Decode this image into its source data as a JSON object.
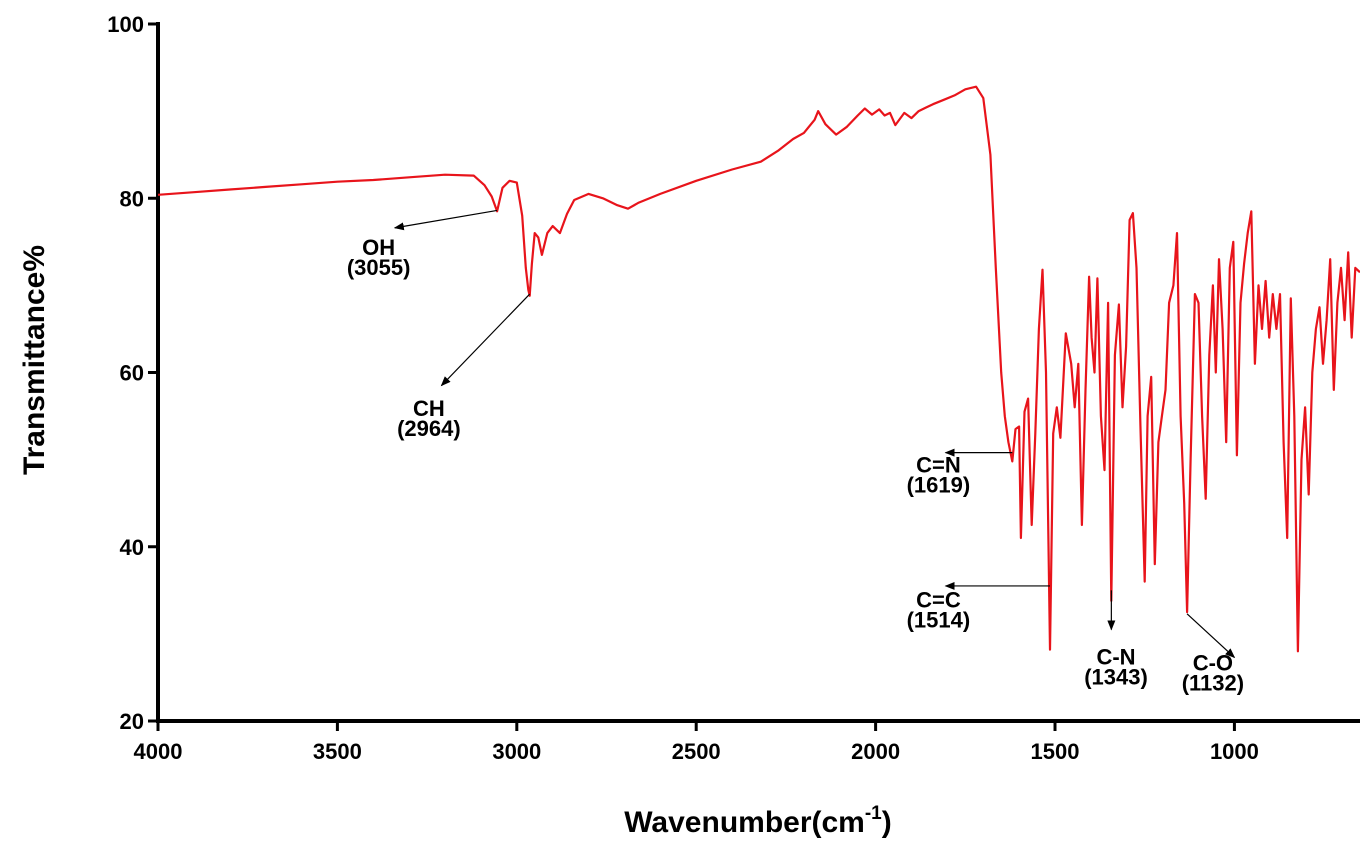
{
  "chart_data": {
    "type": "line",
    "title": "",
    "xlabel": "Wavenumber(cm",
    "xlabel_superscript": "-1",
    "xlabel_close": ")",
    "ylabel": "Transmittance%",
    "xlim": [
      4000,
      650
    ],
    "ylim": [
      20,
      100
    ],
    "x_reversed": true,
    "grid": false,
    "x_ticks": [
      4000,
      3500,
      3000,
      2500,
      2000,
      1500,
      1000
    ],
    "x_tick_labels": [
      "4000",
      "3500",
      "3000",
      "2500",
      "2000",
      "1500",
      "1000"
    ],
    "y_ticks": [
      20,
      40,
      60,
      80,
      100
    ],
    "y_tick_labels": [
      "20",
      "40",
      "60",
      "80",
      "100"
    ],
    "series": [
      {
        "color": "#e8141b",
        "x": [
          4000,
          3900,
          3800,
          3700,
          3600,
          3500,
          3400,
          3300,
          3200,
          3120,
          3090,
          3070,
          3055,
          3040,
          3020,
          3000,
          2985,
          2975,
          2968,
          2964,
          2958,
          2950,
          2940,
          2930,
          2915,
          2900,
          2880,
          2860,
          2840,
          2800,
          2760,
          2720,
          2690,
          2660,
          2600,
          2500,
          2400,
          2320,
          2270,
          2230,
          2200,
          2170,
          2160,
          2140,
          2110,
          2080,
          2050,
          2030,
          2010,
          1990,
          1975,
          1960,
          1945,
          1920,
          1900,
          1880,
          1860,
          1840,
          1810,
          1780,
          1750,
          1720,
          1700,
          1680,
          1665,
          1650,
          1640,
          1630,
          1619,
          1610,
          1600,
          1595,
          1585,
          1575,
          1565,
          1555,
          1545,
          1535,
          1525,
          1514,
          1505,
          1495,
          1485,
          1470,
          1455,
          1445,
          1435,
          1425,
          1415,
          1405,
          1398,
          1390,
          1382,
          1372,
          1362,
          1352,
          1343,
          1333,
          1322,
          1312,
          1302,
          1292,
          1283,
          1273,
          1262,
          1250,
          1242,
          1232,
          1222,
          1212,
          1202,
          1192,
          1182,
          1170,
          1160,
          1150,
          1140,
          1132,
          1122,
          1110,
          1100,
          1090,
          1080,
          1070,
          1060,
          1052,
          1043,
          1033,
          1023,
          1013,
          1003,
          993,
          983,
          973,
          963,
          953,
          943,
          933,
          923,
          913,
          903,
          893,
          883,
          873,
          863,
          853,
          843,
          833,
          823,
          813,
          803,
          793,
          783,
          773,
          763,
          753,
          743,
          733,
          723,
          713,
          703,
          693,
          683,
          673,
          663,
          650
        ],
        "y": [
          80.4,
          80.7,
          81.0,
          81.3,
          81.6,
          81.9,
          82.1,
          82.4,
          82.7,
          82.6,
          81.5,
          80.2,
          78.5,
          81.2,
          82.0,
          81.8,
          78.0,
          72.0,
          69.5,
          68.8,
          72.5,
          76.0,
          75.5,
          73.5,
          76.0,
          76.8,
          76.0,
          78.2,
          79.8,
          80.5,
          80.0,
          79.2,
          78.8,
          79.5,
          80.5,
          82.0,
          83.3,
          84.2,
          85.5,
          86.8,
          87.5,
          89.0,
          90.0,
          88.5,
          87.3,
          88.2,
          89.5,
          90.3,
          89.6,
          90.2,
          89.5,
          89.8,
          88.4,
          89.8,
          89.2,
          90.0,
          90.4,
          90.8,
          91.3,
          91.8,
          92.5,
          92.8,
          91.5,
          85.0,
          72.0,
          60.0,
          55.0,
          52.0,
          49.8,
          53.5,
          53.8,
          41.0,
          55.5,
          57.0,
          42.5,
          53.0,
          65.0,
          71.8,
          60.0,
          28.2,
          53.0,
          56.0,
          52.5,
          64.5,
          61.0,
          56.0,
          61.0,
          42.5,
          58.0,
          71.0,
          64.0,
          60.0,
          70.8,
          55.0,
          48.8,
          68.0,
          33.8,
          62.0,
          67.8,
          56.0,
          63.0,
          77.5,
          78.3,
          72.0,
          54.0,
          36.0,
          55.0,
          59.5,
          38.0,
          52.0,
          55.0,
          58.0,
          68.0,
          70.0,
          76.0,
          55.0,
          45.0,
          32.5,
          50.0,
          69.0,
          68.0,
          55.0,
          45.5,
          62.0,
          70.0,
          60.0,
          73.0,
          65.0,
          52.0,
          72.0,
          75.0,
          50.5,
          68.0,
          72.5,
          76.0,
          78.5,
          61.0,
          70.0,
          65.0,
          70.5,
          64.0,
          69.0,
          65.0,
          69.0,
          52.0,
          41.0,
          68.5,
          55.0,
          28.0,
          50.0,
          56.0,
          46.0,
          60.0,
          65.0,
          67.5,
          61.0,
          66.0,
          73.0,
          58.0,
          68.0,
          72.0,
          66.0,
          73.8,
          64.0,
          72.0,
          71.5
        ]
      }
    ],
    "annotations": [
      {
        "label": "OH",
        "sub": "(3055)",
        "peak_x": 3055,
        "peak_y": 78.6,
        "tx": 3340,
        "ty": 76.6,
        "lx": 3385,
        "ly": 73.5
      },
      {
        "label": "CH",
        "sub": "(2964)",
        "peak_x": 2964,
        "peak_y": 69.0,
        "tx": 3210,
        "ty": 58.5,
        "lx": 3245,
        "ly": 55.0
      },
      {
        "label": "C=N",
        "sub": "(1619)",
        "peak_x": 1619,
        "peak_y": 50.8,
        "tx": 1805,
        "ty": 50.8,
        "lx": 1825,
        "ly": 48.5
      },
      {
        "label": "C=C",
        "sub": "(1514)",
        "peak_x": 1514,
        "peak_y": 35.5,
        "tx": 1805,
        "ty": 35.5,
        "lx": 1825,
        "ly": 33.0
      },
      {
        "label": "C-N",
        "sub": "(1343)",
        "peak_x": 1343,
        "peak_y": 35.0,
        "tx": 1343,
        "ty": 30.5,
        "lx": 1330,
        "ly": 26.5
      },
      {
        "label": "C-O",
        "sub": "(1132)",
        "peak_x": 1132,
        "peak_y": 32.3,
        "tx": 1000,
        "ty": 27.3,
        "lx": 1060,
        "ly": 25.8
      }
    ]
  }
}
